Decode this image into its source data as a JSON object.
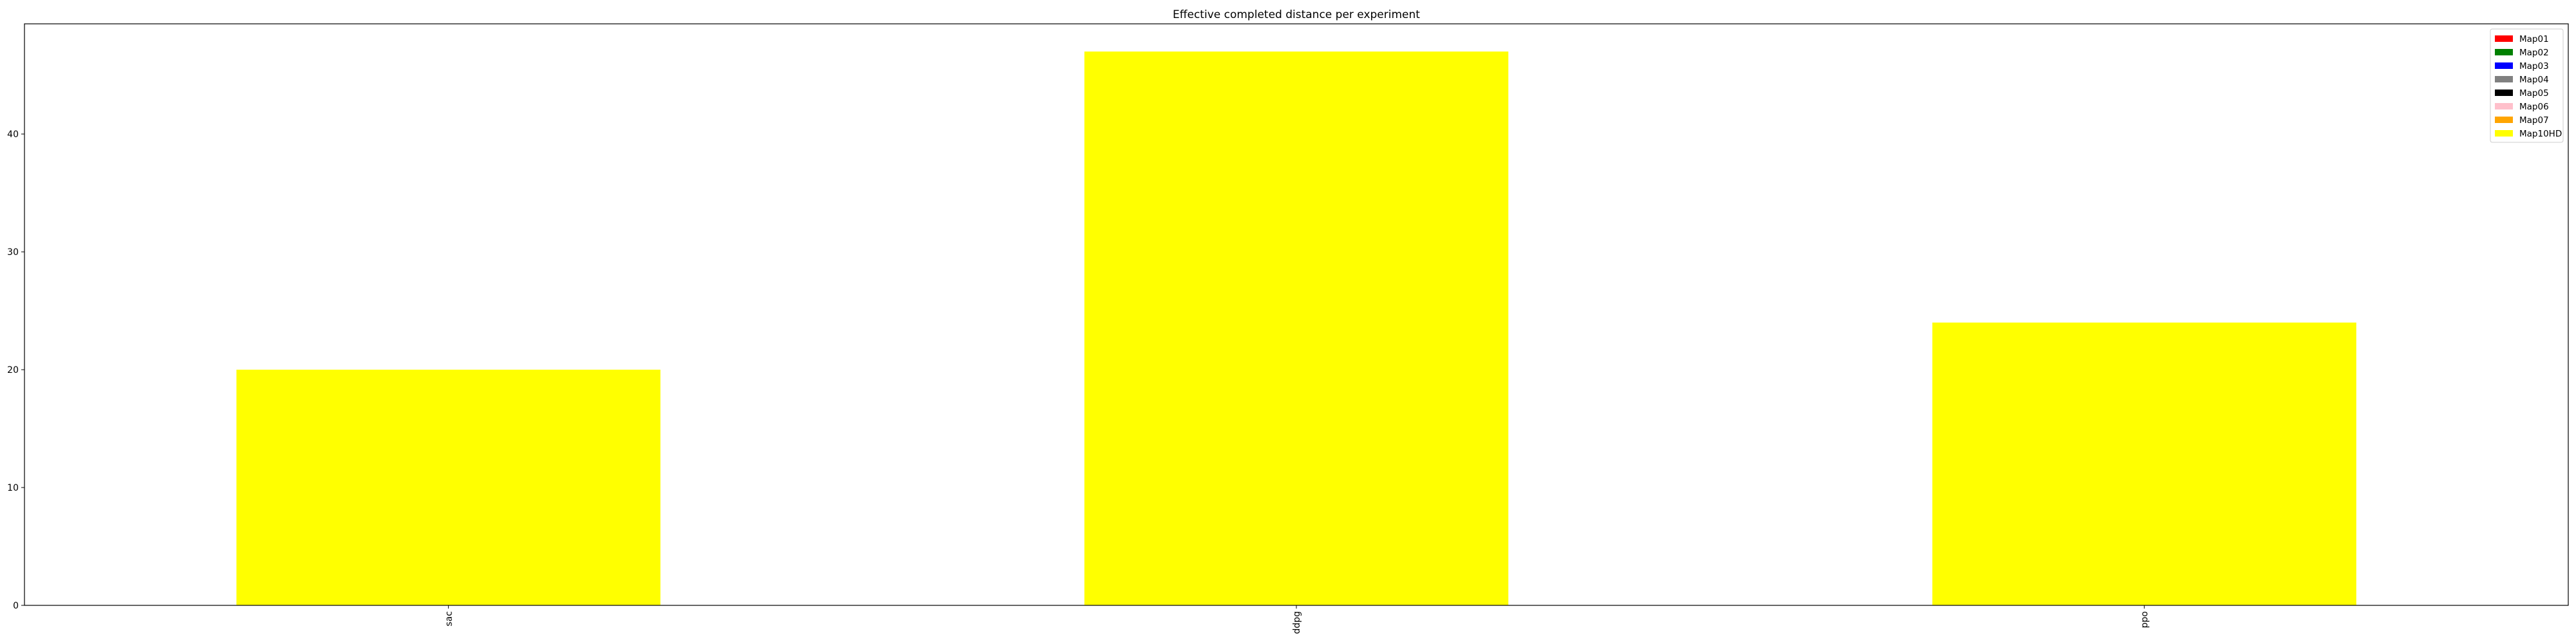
{
  "chart_data": {
    "type": "bar",
    "title": "Effective completed distance per experiment",
    "xlabel": "",
    "ylabel": "",
    "categories": [
      "sac",
      "ddpg",
      "ppo"
    ],
    "series": [
      {
        "name": "Map01",
        "color": "#ff0000",
        "values": [
          0,
          0,
          0
        ]
      },
      {
        "name": "Map02",
        "color": "#008000",
        "values": [
          0,
          0,
          0
        ]
      },
      {
        "name": "Map03",
        "color": "#0000ff",
        "values": [
          0,
          0,
          0
        ]
      },
      {
        "name": "Map04",
        "color": "#808080",
        "values": [
          0,
          0,
          0
        ]
      },
      {
        "name": "Map05",
        "color": "#000000",
        "values": [
          0,
          0,
          0
        ]
      },
      {
        "name": "Map06",
        "color": "#ffc0cb",
        "values": [
          0,
          0,
          0
        ]
      },
      {
        "name": "Map07",
        "color": "#ffa500",
        "values": [
          0,
          0,
          0
        ]
      },
      {
        "name": "Map10HD",
        "color": "#ffff00",
        "values": [
          20,
          47,
          24
        ]
      }
    ],
    "stacked": true,
    "ylim": [
      0,
      49.35
    ],
    "yticks": [
      0,
      10,
      20,
      30,
      40
    ],
    "grid": false,
    "legend_position": "top-right",
    "xtick_rotation": 90
  }
}
